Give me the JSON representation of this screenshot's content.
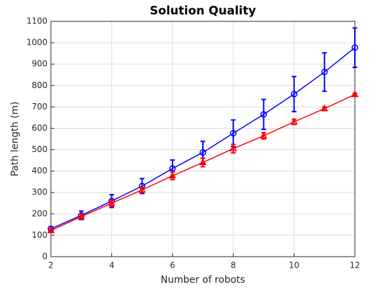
{
  "chart_data": {
    "type": "line",
    "title": "Solution Quality",
    "xlabel": "Number of robots",
    "ylabel": "Path length (m)",
    "x": [
      2,
      3,
      4,
      5,
      6,
      7,
      8,
      9,
      10,
      11,
      12
    ],
    "series": [
      {
        "color": "#0000ff",
        "marker": "circle",
        "values": [
          130,
          193,
          260,
          330,
          412,
          487,
          577,
          665,
          760,
          863,
          977
        ],
        "errors": [
          10,
          20,
          30,
          35,
          40,
          52,
          62,
          70,
          82,
          90,
          92
        ]
      },
      {
        "color": "#ff0000",
        "marker": "triangle",
        "values": [
          122,
          187,
          250,
          312,
          378,
          440,
          505,
          565,
          630,
          692,
          758
        ],
        "errors": [
          8,
          12,
          15,
          12,
          18,
          20,
          20,
          15,
          12,
          8,
          5
        ]
      }
    ],
    "xlim": [
      2,
      12
    ],
    "xticks": [
      2,
      4,
      6,
      8,
      10,
      12
    ],
    "ylim": [
      0,
      1100
    ],
    "yticks": [
      0,
      100,
      200,
      300,
      400,
      500,
      600,
      700,
      800,
      900,
      1000,
      1100
    ],
    "grid": true
  }
}
